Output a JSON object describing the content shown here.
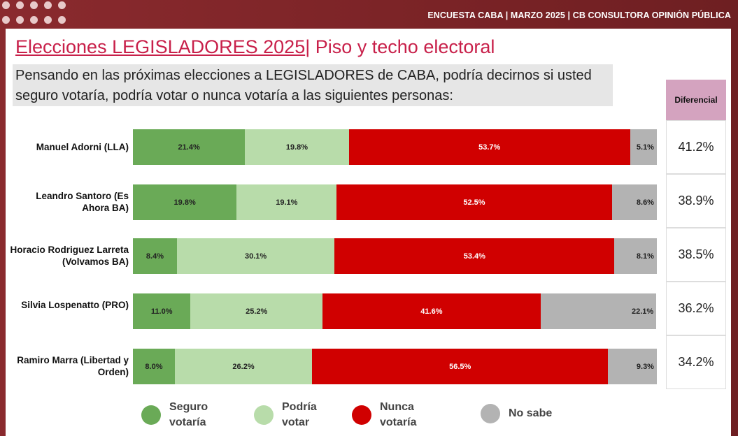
{
  "header": {
    "topline": "ENCUESTA CABA | MARZO 2025 | CB CONSULTORA OPINIÓN PÚBLICA"
  },
  "title": {
    "main": "Elecciones LEGISLADORES 2025",
    "sep": "|",
    "rest": " Piso y techo electoral"
  },
  "question": "Pensando en las próximas elecciones a LEGISLADORES de CABA, podría decirnos si usted seguro votaría, podría votar o nunca votaría a las siguientes personas:",
  "diferencial": {
    "header": "Diferencial",
    "values": [
      "41.2%",
      "38.9%",
      "38.5%",
      "36.2%",
      "34.2%"
    ]
  },
  "colors": {
    "seguro": "#6aaa57",
    "podria": "#b8dcaa",
    "nunca": "#d00000",
    "nosabe": "#b3b3b3"
  },
  "chart_data": {
    "type": "bar",
    "orientation": "horizontal-stacked-100",
    "categories": [
      "Manuel Adorni (LLA)",
      "Leandro Santoro (Es Ahora BA)",
      "Horacio Rodriguez Larreta (Volvamos BA)",
      "Silvia Lospenatto (PRO)",
      "Ramiro Marra (Libertad y Orden)"
    ],
    "series": [
      {
        "name": "Seguro votaría",
        "values": [
          21.4,
          19.8,
          8.4,
          11.0,
          8.0
        ]
      },
      {
        "name": "Podría votar",
        "values": [
          19.8,
          19.1,
          30.1,
          25.2,
          26.2
        ]
      },
      {
        "name": "Nunca votaría",
        "values": [
          53.7,
          52.5,
          53.4,
          41.6,
          56.5
        ]
      },
      {
        "name": "No sabe",
        "values": [
          5.1,
          8.6,
          8.1,
          22.1,
          9.3
        ]
      }
    ],
    "legend": "bottom"
  }
}
